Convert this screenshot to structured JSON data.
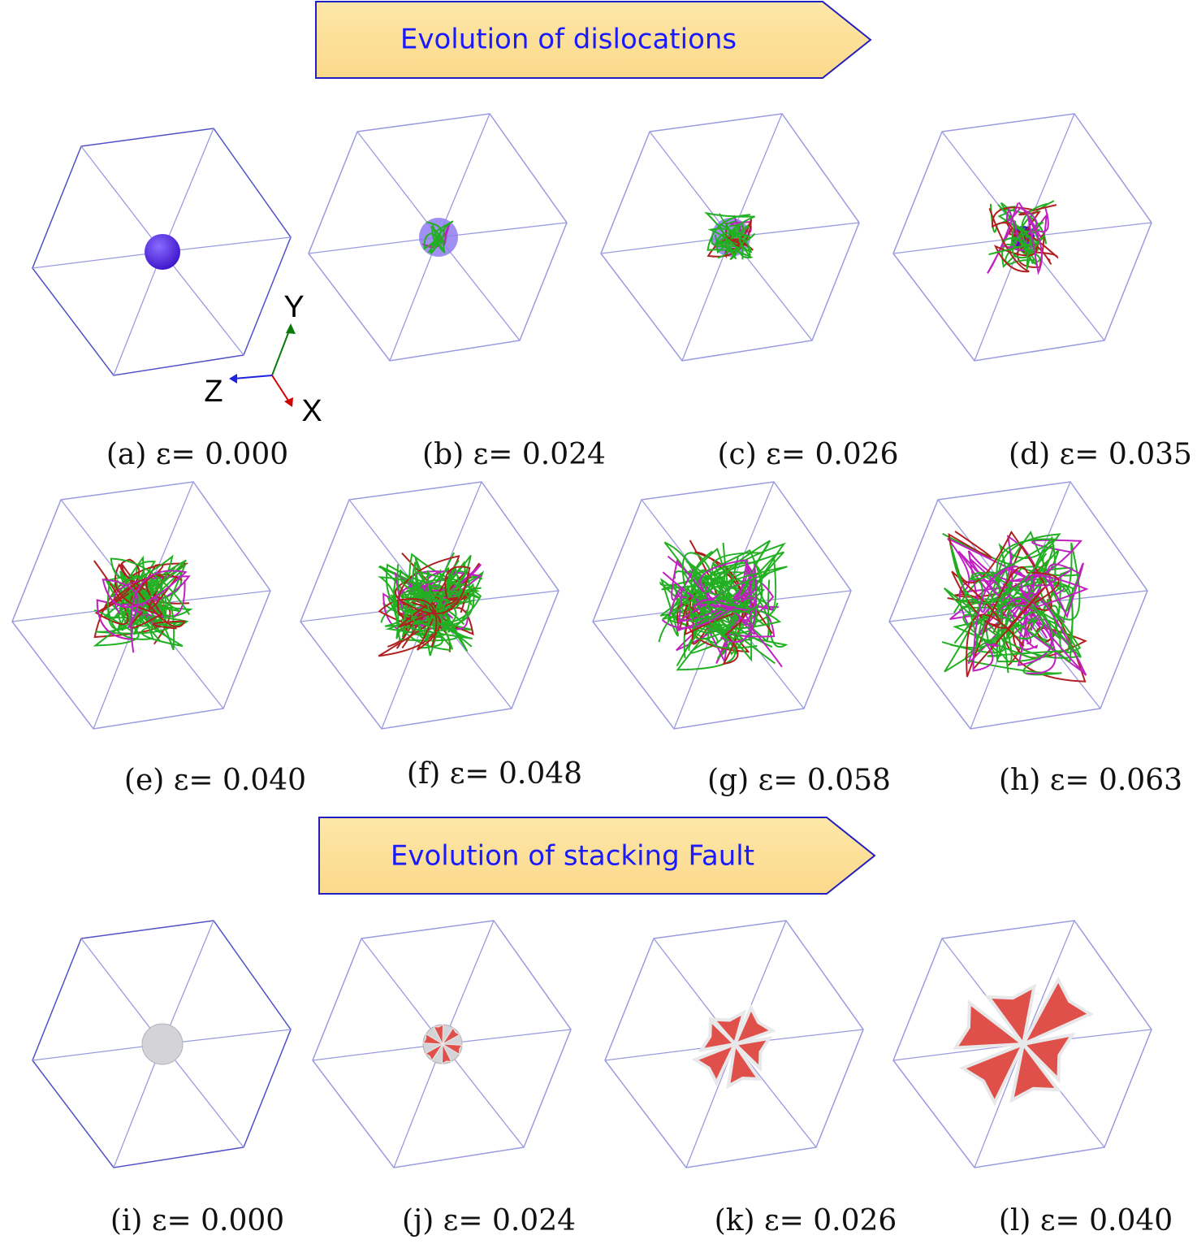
{
  "banners": [
    {
      "title": "Evolution of dislocations"
    },
    {
      "title": "Evolution of stacking Fault"
    }
  ],
  "axes": {
    "y": "Y",
    "z": "Z",
    "x": "X"
  },
  "panels": [
    {
      "caption": "(a) ε= 0.000"
    },
    {
      "caption": "(b) ε= 0.024"
    },
    {
      "caption": "(c) ε= 0.026"
    },
    {
      "caption": "(d) ε= 0.035"
    },
    {
      "caption": "(e) ε= 0.040"
    },
    {
      "caption": "(f) ε= 0.048"
    },
    {
      "caption": "(g) ε= 0.058"
    },
    {
      "caption": "(h) ε= 0.063"
    },
    {
      "caption": "(i) ε= 0.000"
    },
    {
      "caption": "(j) ε= 0.024"
    },
    {
      "caption": "(k) ε= 0.026"
    },
    {
      "caption": "(l) ε= 0.040"
    }
  ]
}
